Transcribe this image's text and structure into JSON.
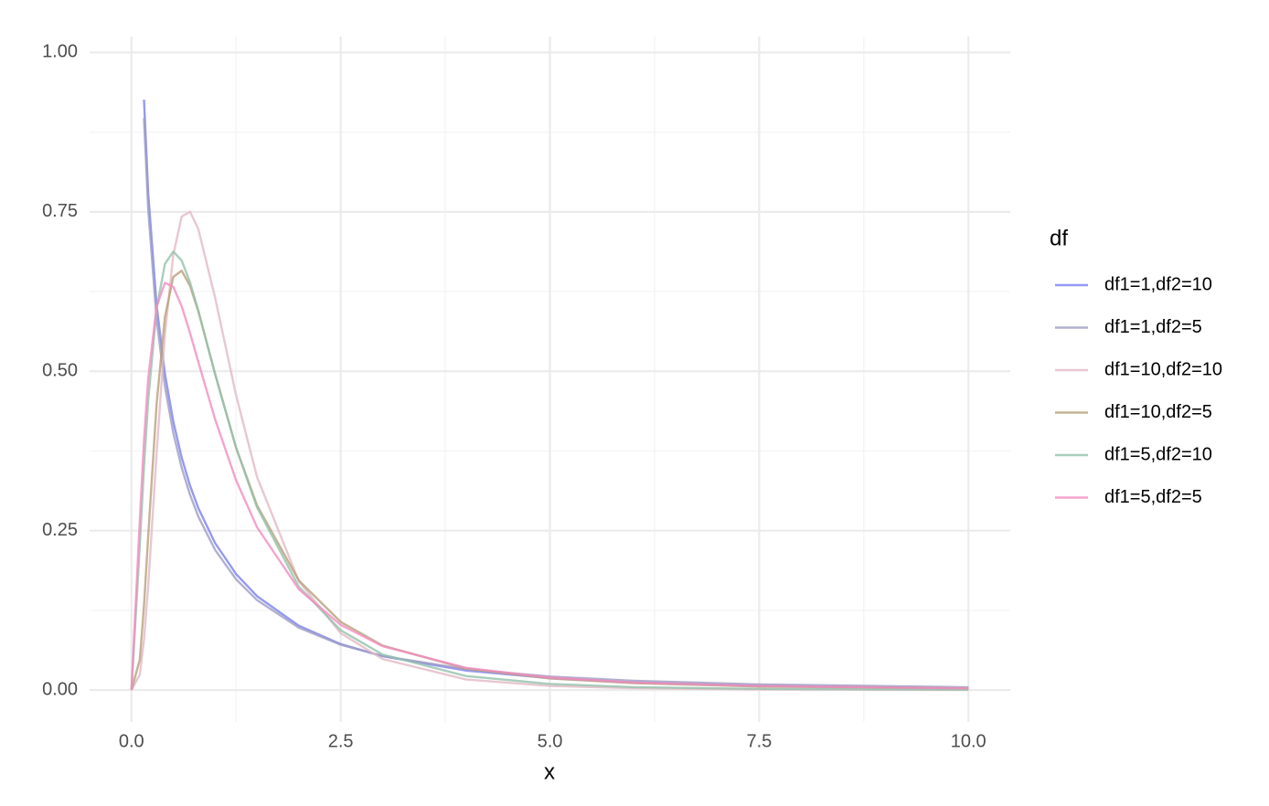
{
  "chart_data": {
    "type": "line",
    "x_label": "x",
    "legend_title": "df",
    "legend_position": "right",
    "grid": true,
    "xlim": [
      -0.5,
      10.5
    ],
    "ylim": [
      -0.05,
      1.025
    ],
    "xticks": [
      {
        "value": 0,
        "label": "0.0"
      },
      2.5,
      {
        "value": 5,
        "label": "5.0"
      },
      7.5,
      {
        "value": 10,
        "label": "10.0"
      }
    ],
    "yticks": [
      {
        "value": 0,
        "label": "0.00"
      },
      0.25,
      {
        "value": 0.5,
        "label": "0.50"
      },
      0.75,
      {
        "value": 1,
        "label": "1.00"
      }
    ],
    "x": [
      0,
      0.1,
      0.15,
      0.2,
      0.3,
      0.4,
      0.5,
      0.6,
      0.7,
      0.8,
      1,
      1.25,
      1.5,
      2,
      2.5,
      3,
      4,
      5,
      6,
      7.5,
      10
    ],
    "series": [
      {
        "name": "df1=1,df2=10",
        "color": "#7b7ff0",
        "values": [
          null,
          null,
          0.926,
          0.78,
          0.604,
          0.496,
          0.421,
          0.3646,
          0.3206,
          0.285,
          0.2304,
          0.182,
          0.1473,
          0.1009,
          0.0721,
          0.0531,
          0.0306,
          0.0187,
          0.012,
          0.0066,
          0.0027
        ]
      },
      {
        "name": "df1=1,df2=5",
        "color": "#9d9cc2",
        "values": [
          null,
          null,
          0.897,
          0.7546,
          0.582,
          0.4764,
          0.4033,
          0.3488,
          0.3062,
          0.2719,
          0.2197,
          0.1738,
          0.1411,
          0.0978,
          0.0711,
          0.0535,
          0.0326,
          0.0212,
          0.0146,
          0.0089,
          0.0044
        ]
      },
      {
        "name": "df1=10,df2=10",
        "color": "#e2b9c4",
        "values": [
          0,
          0.0243,
          0.0788,
          0.1628,
          0.37,
          0.5576,
          0.6828,
          0.7426,
          0.7503,
          0.7227,
          0.6152,
          0.4625,
          0.3344,
          0.1707,
          0.0892,
          0.0487,
          0.0165,
          0.0065,
          0.0029,
          0.001,
          0.0002
        ]
      },
      {
        "name": "df1=10,df2=5",
        "color": "#b89f7a",
        "values": [
          0,
          0.0478,
          0.1328,
          0.2409,
          0.4477,
          0.5852,
          0.648,
          0.6577,
          0.634,
          0.5935,
          0.4955,
          0.3803,
          0.2898,
          0.1718,
          0.1069,
          0.0698,
          0.0335,
          0.0182,
          0.0108,
          0.0055,
          0.0023
        ]
      },
      {
        "name": "df1=5,df2=10",
        "color": "#93c2ab",
        "values": [
          0,
          0.2274,
          0.3502,
          0.4538,
          0.5974,
          0.6684,
          0.6877,
          0.6737,
          0.6395,
          0.595,
          0.4955,
          0.38,
          0.2867,
          0.162,
          0.0937,
          0.0558,
          0.0219,
          0.0096,
          0.0046,
          0.0018,
          0.0005
        ]
      },
      {
        "name": "df1=5,df2=5",
        "color": "#f28cc0",
        "values": [
          0,
          0.2667,
          0.3922,
          0.4882,
          0.601,
          0.6387,
          0.6324,
          0.602,
          0.56,
          0.5143,
          0.4244,
          0.3291,
          0.2555,
          0.1581,
          0.1022,
          0.0689,
          0.0348,
          0.0195,
          0.0119,
          0.0063,
          0.0027
        ]
      }
    ]
  }
}
